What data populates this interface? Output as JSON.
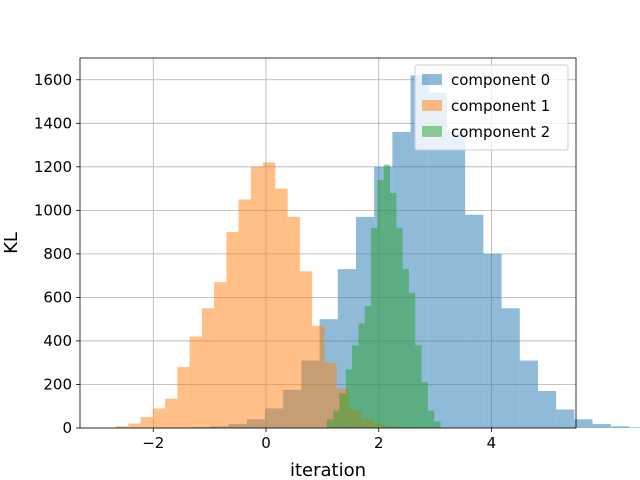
{
  "chart_data": {
    "type": "bar",
    "subtype": "overlapping-histogram",
    "title": "",
    "xlabel": "iteration",
    "ylabel": "KL",
    "xlim": [
      -3.3,
      5.5
    ],
    "ylim": [
      0,
      1700
    ],
    "xticks": [
      {
        "value": -2,
        "label": "−2"
      },
      {
        "value": 0,
        "label": "0"
      },
      {
        "value": 2,
        "label": "2"
      },
      {
        "value": 4,
        "label": "4"
      }
    ],
    "yticks": [
      {
        "value": 0,
        "label": "0"
      },
      {
        "value": 200,
        "label": "200"
      },
      {
        "value": 400,
        "label": "400"
      },
      {
        "value": 600,
        "label": "600"
      },
      {
        "value": 800,
        "label": "800"
      },
      {
        "value": 1000,
        "label": "1000"
      },
      {
        "value": 1200,
        "label": "1200"
      },
      {
        "value": 1400,
        "label": "1400"
      },
      {
        "value": 1600,
        "label": "1600"
      }
    ],
    "grid": true,
    "legend_position": "top-right",
    "series": [
      {
        "name": "component 0",
        "color": "#1f77b4",
        "alpha": 0.5,
        "bin_start": -1.31,
        "bin_width": 0.3229,
        "counts": [
          4,
          8,
          18,
          40,
          90,
          175,
          310,
          500,
          730,
          970,
          1200,
          1360,
          1620,
          1540,
          1360,
          980,
          800,
          550,
          310,
          170,
          85,
          40,
          18,
          8,
          3
        ]
      },
      {
        "name": "component 1",
        "color": "#ff7f0e",
        "alpha": 0.5,
        "bin_start": -2.66,
        "bin_width": 0.2174,
        "counts": [
          8,
          20,
          50,
          90,
          135,
          280,
          420,
          550,
          670,
          900,
          1050,
          1200,
          1220,
          1100,
          970,
          720,
          470,
          300,
          180,
          85,
          42,
          18,
          6
        ]
      },
      {
        "name": "component 2",
        "color": "#2ca02c",
        "alpha": 0.5,
        "bin_start": 1.08,
        "bin_width": 0.112,
        "counts": [
          40,
          80,
          160,
          270,
          380,
          480,
          560,
          920,
          1140,
          1210,
          1080,
          920,
          730,
          620,
          380,
          210,
          80,
          30
        ]
      }
    ]
  }
}
